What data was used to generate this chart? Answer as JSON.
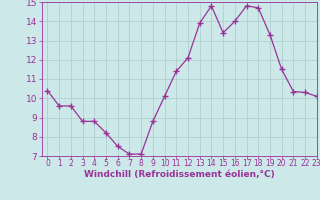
{
  "x": [
    0,
    1,
    2,
    3,
    4,
    5,
    6,
    7,
    8,
    9,
    10,
    11,
    12,
    13,
    14,
    15,
    16,
    17,
    18,
    19,
    20,
    21,
    22,
    23
  ],
  "y": [
    10.4,
    9.6,
    9.6,
    8.8,
    8.8,
    8.2,
    7.5,
    7.1,
    7.1,
    8.8,
    10.1,
    11.4,
    12.1,
    13.9,
    14.8,
    13.4,
    14.0,
    14.8,
    14.7,
    13.3,
    11.5,
    10.35,
    10.3,
    10.1
  ],
  "line_color": "#993399",
  "marker": "+",
  "marker_size": 4,
  "bg_color": "#cce8e8",
  "grid_color": "#aacccc",
  "xlabel": "Windchill (Refroidissement éolien,°C)",
  "xlabel_color": "#993399",
  "tick_color": "#993399",
  "ylim": [
    7,
    15
  ],
  "xlim": [
    -0.5,
    23
  ],
  "yticks": [
    7,
    8,
    9,
    10,
    11,
    12,
    13,
    14,
    15
  ],
  "xticks": [
    0,
    1,
    2,
    3,
    4,
    5,
    6,
    7,
    8,
    9,
    10,
    11,
    12,
    13,
    14,
    15,
    16,
    17,
    18,
    19,
    20,
    21,
    22,
    23
  ],
  "tick_fontsize": 5.5,
  "xlabel_fontsize": 6.5,
  "ytick_fontsize": 6.5
}
